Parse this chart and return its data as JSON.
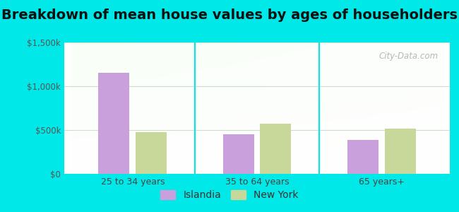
{
  "title": "Breakdown of mean house values by ages of householders",
  "categories": [
    "25 to 34 years",
    "35 to 64 years",
    "65 years+"
  ],
  "islandia_values": [
    1150000,
    450000,
    390000
  ],
  "newyork_values": [
    475000,
    575000,
    515000
  ],
  "islandia_color": "#c9a0dc",
  "newyork_color": "#c8d89a",
  "background_outer": "#00e8e8",
  "ylim": [
    0,
    1500000
  ],
  "yticks": [
    0,
    500000,
    1000000,
    1500000
  ],
  "ytick_labels": [
    "$0",
    "$500k",
    "$1,000k",
    "$1,500k"
  ],
  "title_fontsize": 14,
  "legend_labels": [
    "Islandia",
    "New York"
  ],
  "watermark": "City-Data.com",
  "bar_width": 0.25,
  "bar_gap": 0.05
}
